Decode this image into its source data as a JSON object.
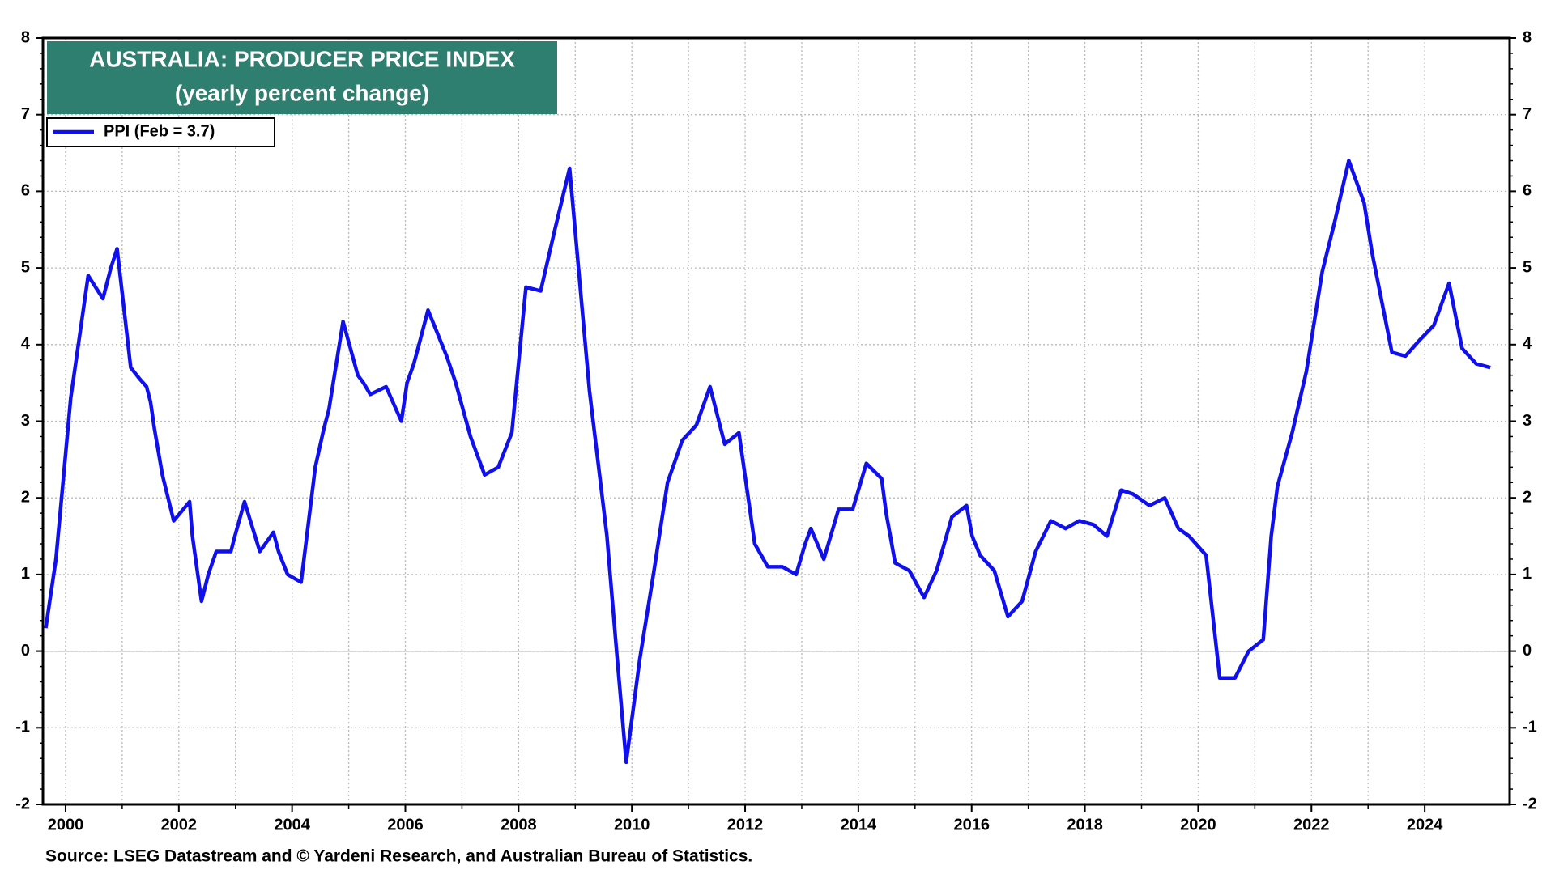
{
  "chart_data": {
    "type": "line",
    "title": "AUSTRALIA: PRODUCER PRICE INDEX",
    "subtitle": "(yearly percent change)",
    "source": "Source: LSEG Datastream and © Yardeni Research, and Australian Bureau of Statistics.",
    "x": [
      1999.65,
      1999.83,
      2000.09,
      2000.4,
      2000.66,
      2000.8,
      2000.91,
      2001.15,
      2001.31,
      2001.43,
      2001.5,
      2001.57,
      2001.71,
      2001.91,
      2002.19,
      2002.24,
      2002.4,
      2002.52,
      2002.66,
      2002.92,
      2002.99,
      2003.16,
      2003.43,
      2003.67,
      2003.76,
      2003.92,
      2004.16,
      2004.41,
      2004.56,
      2004.65,
      2004.9,
      2005.16,
      2005.26,
      2005.38,
      2005.66,
      2005.93,
      2006.03,
      2006.15,
      2006.24,
      2006.4,
      2006.73,
      2006.89,
      2007.15,
      2007.4,
      2007.64,
      2007.88,
      2008.13,
      2008.39,
      2008.64,
      2008.9,
      2009.25,
      2009.56,
      2009.73,
      2009.9,
      2010.14,
      2010.38,
      2010.63,
      2010.89,
      2011.14,
      2011.38,
      2011.64,
      2011.89,
      2012.17,
      2012.4,
      2012.66,
      2012.9,
      2013.06,
      2013.16,
      2013.39,
      2013.65,
      2013.9,
      2014.14,
      2014.41,
      2014.49,
      2014.65,
      2014.9,
      2015.16,
      2015.38,
      2015.65,
      2015.91,
      2016.01,
      2016.15,
      2016.4,
      2016.64,
      2016.89,
      2017.13,
      2017.4,
      2017.66,
      2017.9,
      2018.15,
      2018.39,
      2018.64,
      2018.85,
      2019.14,
      2019.41,
      2019.65,
      2019.84,
      2020.14,
      2020.38,
      2020.65,
      2020.89,
      2021.15,
      2021.29,
      2021.4,
      2021.66,
      2021.91,
      2022.19,
      2022.41,
      2022.66,
      2022.93,
      2023.07,
      2023.42,
      2023.66,
      2023.9,
      2024.16,
      2024.43,
      2024.66,
      2024.91,
      2025.16
    ],
    "series": [
      {
        "name": "PPI (Feb = 3.7)",
        "color": "#1010ee",
        "values": [
          0.3,
          1.2,
          3.3,
          4.9,
          4.6,
          5.0,
          5.25,
          3.7,
          3.55,
          3.45,
          3.25,
          2.9,
          2.3,
          1.7,
          1.95,
          1.5,
          0.65,
          1.0,
          1.3,
          1.3,
          1.5,
          1.95,
          1.3,
          1.55,
          1.3,
          1.0,
          0.9,
          2.4,
          2.9,
          3.15,
          4.3,
          3.6,
          3.5,
          3.35,
          3.45,
          3.0,
          3.5,
          3.75,
          4.0,
          4.45,
          3.85,
          3.5,
          2.8,
          2.3,
          2.4,
          2.85,
          4.75,
          4.7,
          5.5,
          6.3,
          3.4,
          1.5,
          0.0,
          -1.45,
          -0.1,
          1.0,
          2.2,
          2.75,
          2.95,
          3.45,
          2.7,
          2.85,
          1.4,
          1.1,
          1.1,
          1.0,
          1.4,
          1.6,
          1.2,
          1.85,
          1.85,
          2.45,
          2.25,
          1.8,
          1.15,
          1.05,
          0.7,
          1.05,
          1.75,
          1.9,
          1.5,
          1.25,
          1.05,
          0.45,
          0.65,
          1.3,
          1.7,
          1.6,
          1.7,
          1.65,
          1.5,
          2.1,
          2.05,
          1.9,
          2.0,
          1.6,
          1.5,
          1.25,
          -0.35,
          -0.35,
          0.0,
          0.15,
          1.5,
          2.15,
          2.85,
          3.65,
          4.95,
          5.6,
          6.4,
          5.85,
          5.2,
          3.9,
          3.85,
          4.05,
          4.25,
          4.8,
          3.95,
          3.75,
          3.7
        ]
      }
    ],
    "xlim": [
      1999.6,
      2025.5
    ],
    "xticks": [
      2000,
      2002,
      2004,
      2006,
      2008,
      2010,
      2012,
      2014,
      2016,
      2018,
      2020,
      2022,
      2024
    ],
    "ylim": [
      -2,
      8
    ],
    "yticks": [
      -2,
      -1,
      0,
      1,
      2,
      3,
      4,
      5,
      6,
      7,
      8
    ],
    "y2lim": [
      -2,
      8
    ],
    "y2ticks": [
      -2,
      -1,
      0,
      1,
      2,
      3,
      4,
      5,
      6,
      7,
      8
    ],
    "grid": true
  }
}
